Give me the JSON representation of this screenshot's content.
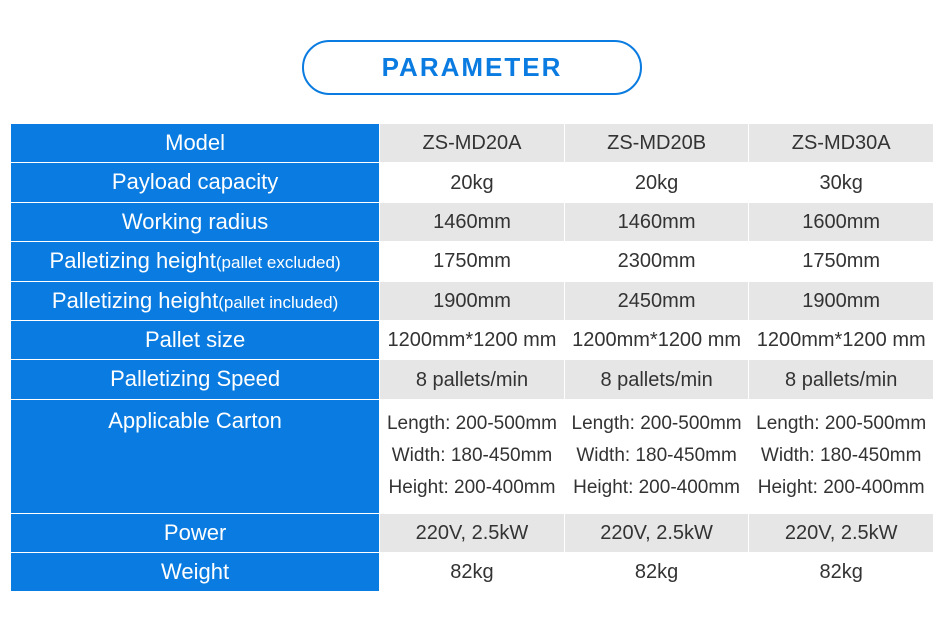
{
  "title": "PARAMETER",
  "colors": {
    "accent": "#0a7be0",
    "band_even": "#e6e6e6",
    "band_odd": "#ffffff",
    "text_on_accent": "#ffffff",
    "text_on_band": "#333333",
    "border": "#ffffff"
  },
  "typography": {
    "title_fontsize_pt": 20,
    "label_fontsize_pt": 17,
    "cell_fontsize_pt": 15
  },
  "table": {
    "labels": {
      "model": "Model",
      "payload": "Payload capacity",
      "radius": "Working radius",
      "pal_h_excl_main": "Palletizing height",
      "pal_h_excl_sub": "(pallet excluded)",
      "pal_h_incl_main": "Palletizing height",
      "pal_h_incl_sub": "(pallet included)",
      "pallet_size": "Pallet size",
      "speed": "Palletizing Speed",
      "carton": "Applicable Carton",
      "power": "Power",
      "weight": "Weight"
    },
    "columns": [
      "ZS-MD20A",
      "ZS-MD20B",
      "ZS-MD30A"
    ],
    "rows": {
      "payload": [
        "20kg",
        "20kg",
        "30kg"
      ],
      "radius": [
        "1460mm",
        "1460mm",
        "1600mm"
      ],
      "pal_h_excl": [
        "1750mm",
        "2300mm",
        "1750mm"
      ],
      "pal_h_incl": [
        "1900mm",
        "2450mm",
        "1900mm"
      ],
      "pallet_size": [
        "1200mm*1200 mm",
        "1200mm*1200 mm",
        "1200mm*1200 mm"
      ],
      "speed": [
        "8 pallets/min",
        "8 pallets/min",
        "8 pallets/min"
      ],
      "carton_l": [
        "Length: 200-500mm",
        "Length: 200-500mm",
        "Length: 200-500mm"
      ],
      "carton_w": [
        "Width: 180-450mm",
        "Width: 180-450mm",
        "Width: 180-450mm"
      ],
      "carton_h": [
        "Height: 200-400mm",
        "Height: 200-400mm",
        "Height: 200-400mm"
      ],
      "power": [
        "220V, 2.5kW",
        "220V, 2.5kW",
        "220V, 2.5kW"
      ],
      "weight": [
        "82kg",
        "82kg",
        "82kg"
      ]
    }
  }
}
